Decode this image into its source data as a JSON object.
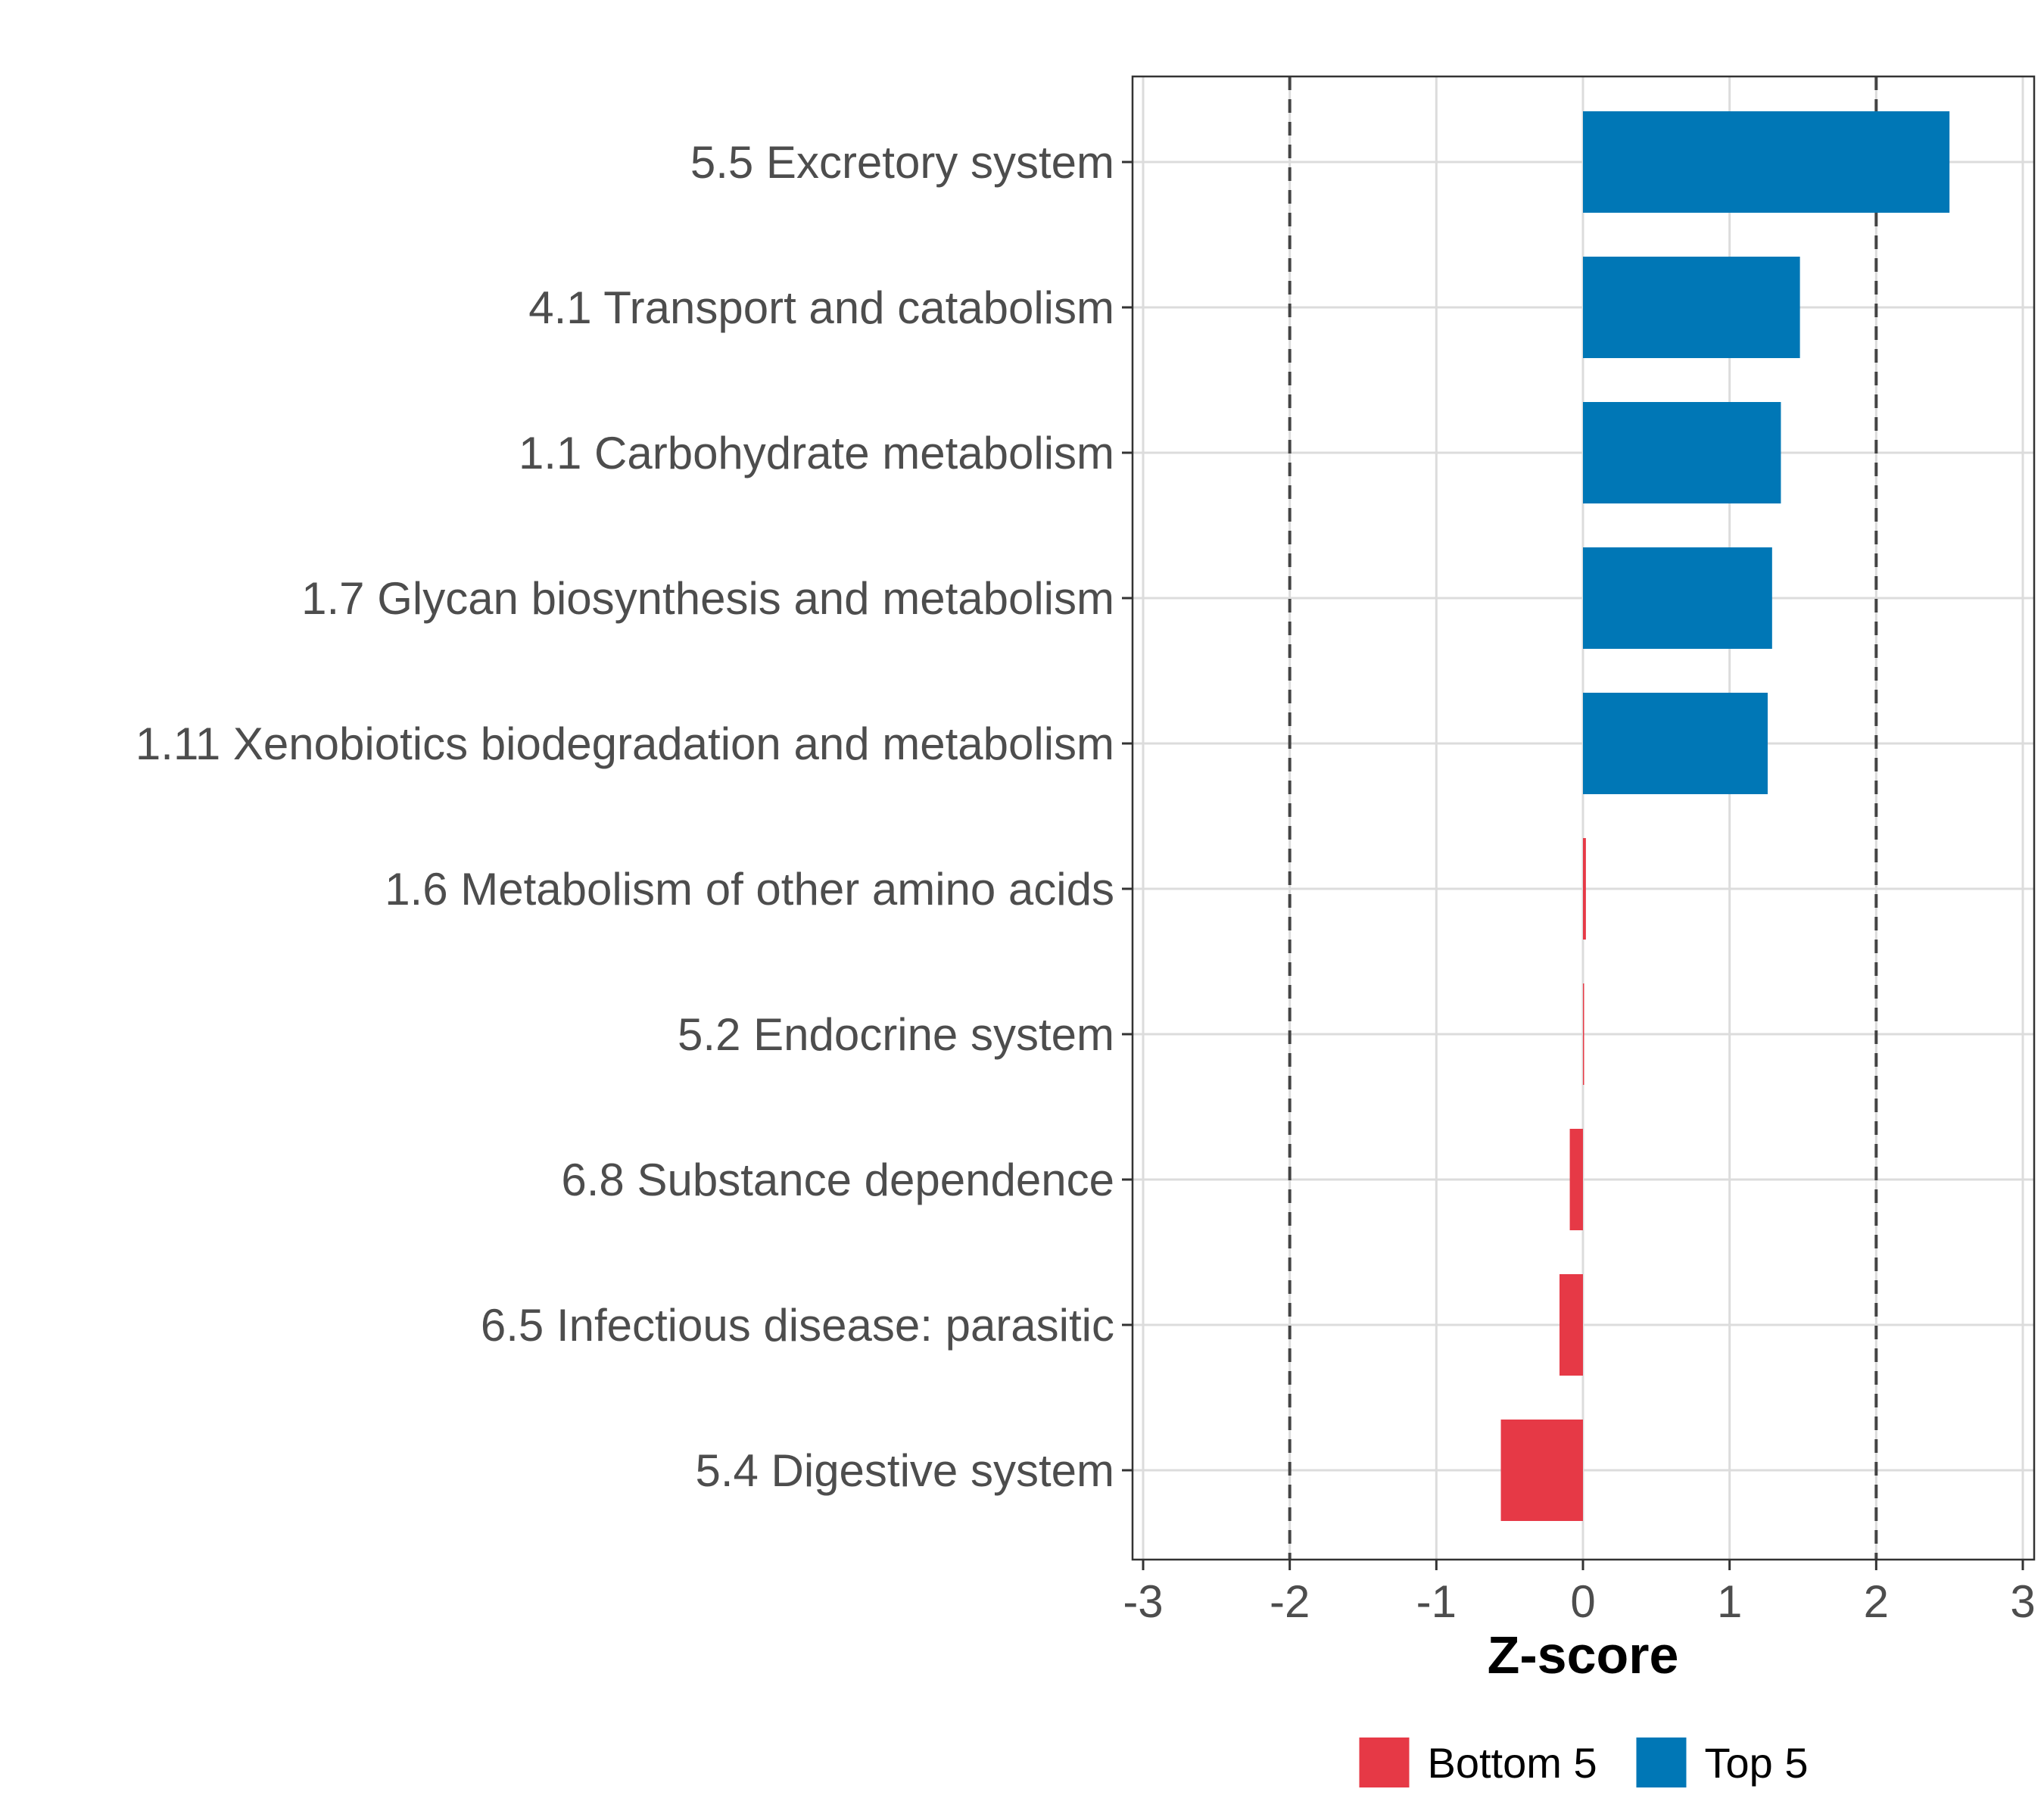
{
  "chart_data": {
    "type": "bar",
    "orientation": "horizontal",
    "title": "",
    "xlabel": "Z-score",
    "ylabel": "",
    "xlim": [
      -3,
      3
    ],
    "xticks": [
      -3,
      -2,
      -1,
      0,
      1,
      2,
      3
    ],
    "xtick_labels": [
      "-3",
      "-2",
      "-1",
      "0",
      "1",
      "2",
      "3"
    ],
    "reference_lines": [
      -2,
      2
    ],
    "grid": true,
    "legend_position": "bottom",
    "categories": [
      "5.5 Excretory system",
      "4.1 Transport and catabolism",
      "1.1 Carbohydrate metabolism",
      "1.7 Glycan biosynthesis and metabolism",
      "1.11 Xenobiotics biodegradation and metabolism",
      "1.6 Metabolism of other amino acids",
      "5.2 Endocrine system",
      "6.8 Substance dependence",
      "6.5 Infectious disease: parasitic",
      "5.4 Digestive system"
    ],
    "values": [
      2.5,
      1.48,
      1.35,
      1.29,
      1.26,
      0.02,
      0.005,
      -0.09,
      -0.16,
      -0.56
    ],
    "groups": [
      "Top 5",
      "Top 5",
      "Top 5",
      "Top 5",
      "Top 5",
      "Bottom 5",
      "Bottom 5",
      "Bottom 5",
      "Bottom 5",
      "Bottom 5"
    ],
    "legend": [
      {
        "name": "Bottom 5",
        "color": "#e63946"
      },
      {
        "name": "Top 5",
        "color": "#0077b6"
      }
    ]
  }
}
